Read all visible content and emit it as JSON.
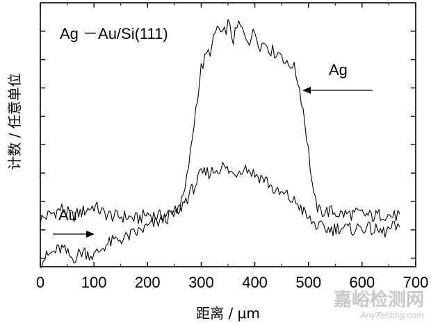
{
  "chart_data": {
    "type": "line",
    "title": "",
    "xlabel": "距离 / μm",
    "ylabel": "计数 / 任意单位",
    "xlim": [
      0,
      700
    ],
    "xticks": [
      0,
      100,
      200,
      300,
      400,
      500,
      600,
      700
    ],
    "xtick_labels": [
      "0",
      "100",
      "200",
      "300",
      "400",
      "500",
      "600",
      "700"
    ],
    "yticks_labeled": false,
    "grid": false,
    "legend": "none",
    "annotations": {
      "sample": "Ag －Au/Si(111)",
      "ag_label": "Ag",
      "au_label": "Au"
    },
    "series": [
      {
        "name": "Ag",
        "x": [
          0,
          20,
          40,
          60,
          80,
          100,
          120,
          140,
          160,
          180,
          200,
          220,
          240,
          260,
          270,
          280,
          290,
          300,
          310,
          320,
          330,
          340,
          350,
          360,
          370,
          380,
          390,
          400,
          410,
          420,
          430,
          440,
          450,
          460,
          470,
          480,
          490,
          500,
          510,
          520,
          540,
          560,
          580,
          600,
          620,
          640,
          660,
          670
        ],
        "y": [
          8,
          10,
          12,
          9,
          11,
          13,
          10,
          9,
          9,
          8,
          10,
          9,
          10,
          12,
          19,
          33,
          50,
          65,
          70,
          73,
          81,
          77,
          82,
          76,
          82,
          78,
          76,
          79,
          74,
          75,
          72,
          71,
          71,
          66,
          67,
          61,
          50,
          34,
          16,
          11,
          11,
          10,
          10,
          10,
          9,
          10,
          9,
          10
        ]
      },
      {
        "name": "Au",
        "x": [
          0,
          20,
          40,
          60,
          80,
          100,
          120,
          140,
          160,
          180,
          200,
          220,
          240,
          260,
          280,
          300,
          320,
          340,
          360,
          380,
          400,
          420,
          440,
          460,
          470,
          480,
          500,
          520,
          540,
          560,
          580,
          600,
          620,
          640,
          660,
          670
        ],
        "y": [
          -8,
          -5,
          -3,
          -7,
          -4,
          -6,
          -2,
          0,
          1,
          3,
          5,
          7,
          9,
          12,
          18,
          25,
          26,
          28,
          25,
          28,
          25,
          23,
          18,
          17,
          15,
          14,
          8,
          5,
          4,
          5,
          4,
          5,
          4,
          3,
          5,
          5
        ]
      }
    ]
  },
  "watermark": {
    "cn": "嘉峪检测网",
    "en": "AnyTesting.com"
  }
}
